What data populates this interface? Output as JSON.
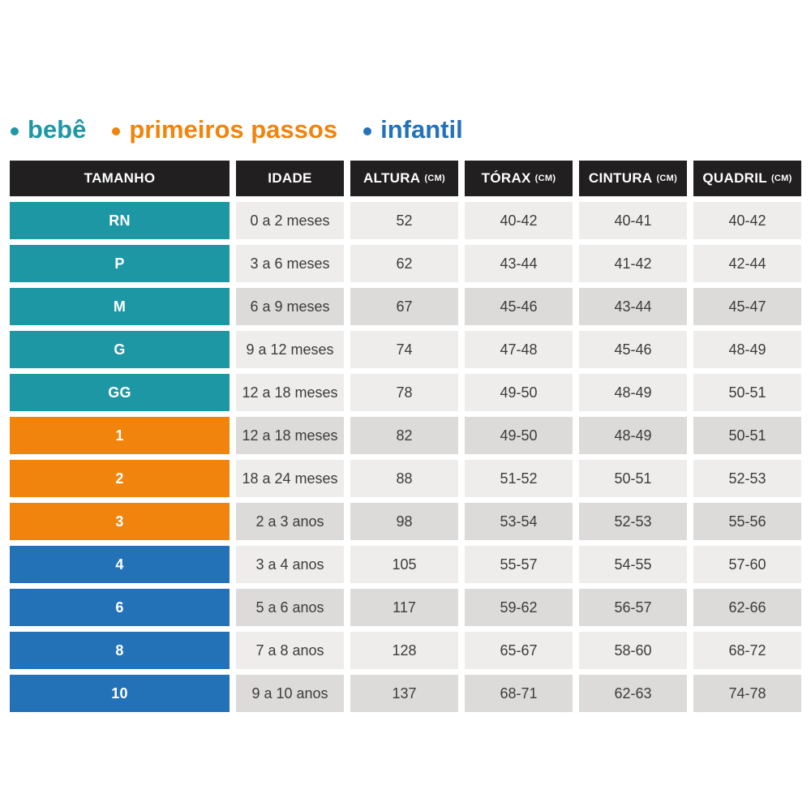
{
  "colors": {
    "teal": "#1e97a5",
    "orange": "#f0840c",
    "blue": "#2372b8",
    "header_bg": "#211f1f",
    "row_light": "#eeedeb",
    "row_dark": "#dcdbd9",
    "text": "#3d3c3b",
    "white": "#ffffff"
  },
  "legend": {
    "items": [
      {
        "label": "bebê",
        "group": "teal"
      },
      {
        "label": "primeiros passos",
        "group": "orange"
      },
      {
        "label": "infantil",
        "group": "blue"
      }
    ]
  },
  "chart_data": {
    "type": "table",
    "title": "",
    "columns": [
      {
        "label": "TAMANHO",
        "unit": ""
      },
      {
        "label": "IDADE",
        "unit": ""
      },
      {
        "label": "ALTURA",
        "unit": "(CM)"
      },
      {
        "label": "TÓRAX",
        "unit": "(CM)"
      },
      {
        "label": "CINTURA",
        "unit": "(CM)"
      },
      {
        "label": "QUADRIL",
        "unit": "(CM)"
      }
    ],
    "rows": [
      {
        "size": "RN",
        "group": "teal",
        "shade": "light",
        "idade": "0 a 2 meses",
        "altura": "52",
        "torax": "40-42",
        "cintura": "40-41",
        "quadril": "40-42"
      },
      {
        "size": "P",
        "group": "teal",
        "shade": "light",
        "idade": "3 a 6 meses",
        "altura": "62",
        "torax": "43-44",
        "cintura": "41-42",
        "quadril": "42-44"
      },
      {
        "size": "M",
        "group": "teal",
        "shade": "dark",
        "idade": "6 a 9 meses",
        "altura": "67",
        "torax": "45-46",
        "cintura": "43-44",
        "quadril": "45-47"
      },
      {
        "size": "G",
        "group": "teal",
        "shade": "light",
        "idade": "9 a 12 meses",
        "altura": "74",
        "torax": "47-48",
        "cintura": "45-46",
        "quadril": "48-49"
      },
      {
        "size": "GG",
        "group": "teal",
        "shade": "light",
        "idade": "12 a 18 meses",
        "altura": "78",
        "torax": "49-50",
        "cintura": "48-49",
        "quadril": "50-51"
      },
      {
        "size": "1",
        "group": "orange",
        "shade": "dark",
        "idade": "12 a 18 meses",
        "altura": "82",
        "torax": "49-50",
        "cintura": "48-49",
        "quadril": "50-51"
      },
      {
        "size": "2",
        "group": "orange",
        "shade": "light",
        "idade": "18 a 24 meses",
        "altura": "88",
        "torax": "51-52",
        "cintura": "50-51",
        "quadril": "52-53"
      },
      {
        "size": "3",
        "group": "orange",
        "shade": "dark",
        "idade": "2 a 3 anos",
        "altura": "98",
        "torax": "53-54",
        "cintura": "52-53",
        "quadril": "55-56"
      },
      {
        "size": "4",
        "group": "blue",
        "shade": "light",
        "idade": "3 a 4 anos",
        "altura": "105",
        "torax": "55-57",
        "cintura": "54-55",
        "quadril": "57-60"
      },
      {
        "size": "6",
        "group": "blue",
        "shade": "dark",
        "idade": "5 a 6 anos",
        "altura": "117",
        "torax": "59-62",
        "cintura": "56-57",
        "quadril": "62-66"
      },
      {
        "size": "8",
        "group": "blue",
        "shade": "light",
        "idade": "7 a 8 anos",
        "altura": "128",
        "torax": "65-67",
        "cintura": "58-60",
        "quadril": "68-72"
      },
      {
        "size": "10",
        "group": "blue",
        "shade": "dark",
        "idade": "9 a 10 anos",
        "altura": "137",
        "torax": "68-71",
        "cintura": "62-63",
        "quadril": "74-78"
      }
    ]
  }
}
